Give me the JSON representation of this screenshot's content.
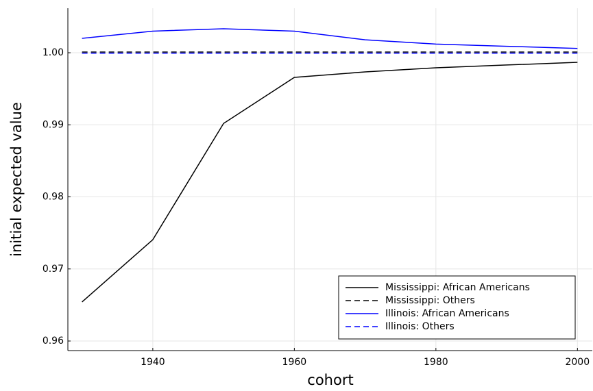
{
  "chart_data": {
    "type": "line",
    "xlabel": "cohort",
    "ylabel": "initial expected value",
    "x": [
      1930,
      1940,
      1950,
      1960,
      1970,
      1980,
      1990,
      2000
    ],
    "series": [
      {
        "name": "Mississippi: African Americans",
        "color": "#000000",
        "dash": false,
        "values": [
          0.96542,
          0.97406,
          0.99019,
          0.99658,
          0.99734,
          0.99791,
          0.9983,
          0.99867
        ]
      },
      {
        "name": "Mississippi: Others",
        "color": "#000000",
        "dash": true,
        "values": [
          1.0001,
          1.0001,
          1.0001,
          1.0001,
          1.0001,
          1.0001,
          1.0001,
          1.0001
        ]
      },
      {
        "name": "Illinois: African Americans",
        "color": "#0000ff",
        "dash": false,
        "values": [
          1.002,
          1.003,
          1.00333,
          1.003,
          1.0018,
          1.0012,
          1.0009,
          1.0006
        ]
      },
      {
        "name": "Illinois: Others",
        "color": "#0000ff",
        "dash": true,
        "values": [
          0.99995,
          0.99995,
          0.99995,
          0.99995,
          0.99995,
          0.99995,
          0.99995,
          0.99995
        ]
      }
    ],
    "xlim": [
      1928,
      2002.1
    ],
    "xticks": [
      1940,
      1960,
      1980,
      2000
    ],
    "ylim": [
      0.95867,
      1.00618
    ],
    "yticks": [
      0.96,
      0.97,
      0.98,
      0.99,
      {
        "value": 1,
        "label": "1.00"
      }
    ],
    "grid": true,
    "legend": "lower right"
  }
}
